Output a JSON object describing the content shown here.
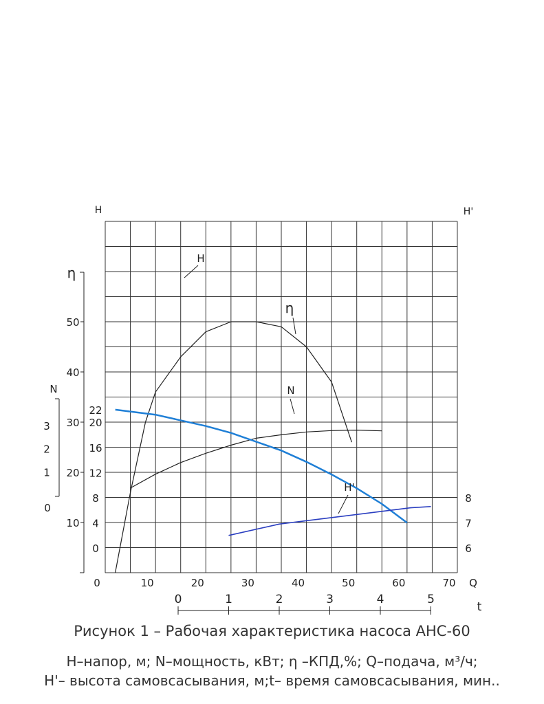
{
  "caption": {
    "title": "Рисунок 1 – Рабочая характеристика насоса АНС-60",
    "legend_line1": "Н–напор, м; N–мощность, кВт; η –КПД,%; Q–подача, м³/ч;",
    "legend_line2": "Н'– высота самовсасывания, м;t– время самовсасывания, мин.."
  },
  "colors": {
    "head_curve": "#1f7fd6",
    "suction_curve": "#2a3ec0",
    "ink": "#222222",
    "grid": "#333333"
  },
  "chart_data": {
    "type": "line",
    "x_axis": {
      "label": "Q",
      "ticks": [
        "0",
        "10",
        "20",
        "30",
        "40",
        "50",
        "60",
        "70"
      ],
      "range": [
        0,
        70
      ]
    },
    "t_axis": {
      "label": "t",
      "ticks": [
        "0",
        "1",
        "2",
        "3",
        "4",
        "5"
      ],
      "range": [
        0,
        5
      ]
    },
    "y_axes": {
      "H": {
        "label": "H",
        "ticks": [
          "0",
          "4",
          "8",
          "12",
          "16",
          "20",
          "22"
        ]
      },
      "eta": {
        "label": "η",
        "ticks": [
          "10",
          "20",
          "30",
          "40",
          "50"
        ]
      },
      "N": {
        "label": "N",
        "ticks": [
          "0",
          "1",
          "2",
          "3"
        ]
      },
      "H_prime": {
        "label": "H'",
        "ticks": [
          "6",
          "7",
          "8"
        ]
      }
    },
    "grid": true,
    "series": [
      {
        "name": "H",
        "unit": "m",
        "x": [
          2,
          10,
          20,
          25,
          30,
          35,
          40,
          45,
          50,
          55,
          60
        ],
        "y": [
          22.0,
          21.2,
          19.4,
          18.3,
          16.9,
          15.5,
          13.7,
          11.7,
          9.5,
          7.0,
          4.0
        ]
      },
      {
        "name": "η",
        "unit": "%",
        "x": [
          2,
          5,
          8,
          10,
          15,
          20,
          25,
          30,
          35,
          40,
          45,
          49
        ],
        "y": [
          0,
          16,
          30,
          36,
          43,
          48,
          50,
          50,
          49,
          45,
          38,
          26
        ]
      },
      {
        "name": "N",
        "unit": "kW",
        "x": [
          5,
          10,
          15,
          20,
          25,
          30,
          35,
          40,
          45,
          50,
          55
        ],
        "y": [
          0.3,
          0.9,
          1.4,
          1.8,
          2.15,
          2.45,
          2.6,
          2.72,
          2.78,
          2.8,
          2.77
        ]
      },
      {
        "name": "H'",
        "unit": "m",
        "x": [
          1,
          2,
          3,
          4,
          4.6,
          5
        ],
        "y": [
          6.5,
          6.95,
          7.2,
          7.45,
          7.6,
          7.65
        ]
      }
    ]
  }
}
